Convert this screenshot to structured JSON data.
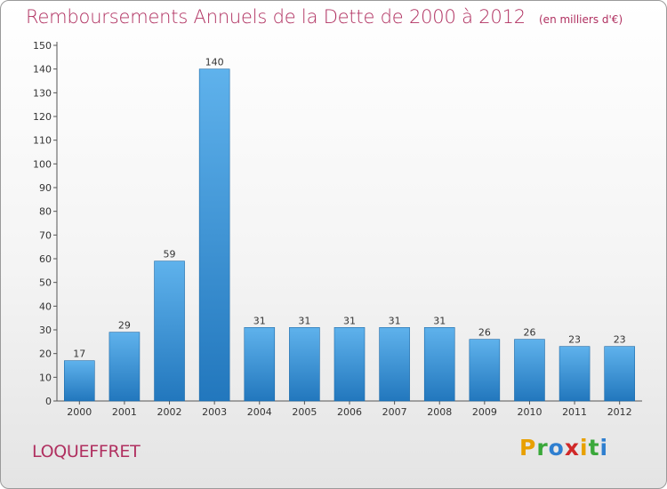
{
  "chart_data": {
    "type": "bar",
    "title": "Remboursements Annuels de la Dette de 2000 à 2012",
    "unit": "(en milliers d'€)",
    "categories": [
      "2000",
      "2001",
      "2002",
      "2003",
      "2004",
      "2005",
      "2006",
      "2007",
      "2008",
      "2009",
      "2010",
      "2011",
      "2012"
    ],
    "values": [
      17,
      29,
      59,
      140,
      31,
      31,
      31,
      31,
      31,
      26,
      26,
      23,
      23
    ],
    "ylim": [
      0,
      150
    ],
    "yticks": [
      0,
      10,
      20,
      30,
      40,
      50,
      60,
      70,
      80,
      90,
      100,
      110,
      120,
      130,
      140,
      150
    ],
    "grid": false,
    "bar_color": "#3f98dc"
  },
  "commune": "LOQUEFFRET",
  "logo": {
    "letters": [
      "P",
      "r",
      "o",
      "x",
      "i",
      "t",
      "i"
    ],
    "colors": [
      "#e8a000",
      "#3aa83a",
      "#2f7fd0",
      "#d02828",
      "#e8a000",
      "#3aa83a",
      "#2f7fd0"
    ]
  }
}
